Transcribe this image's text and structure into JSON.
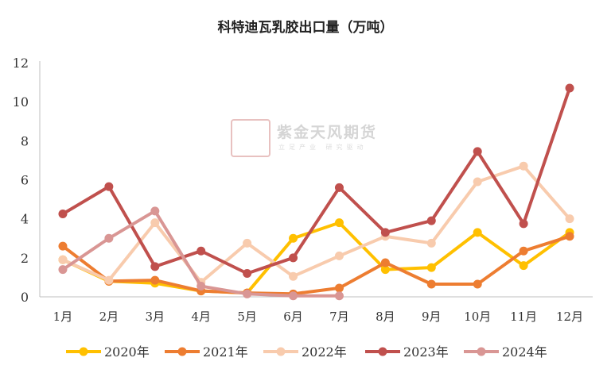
{
  "chart_data": {
    "type": "line",
    "title": "科特迪瓦乳胶出口量（万吨）",
    "categories": [
      "1月",
      "2月",
      "3月",
      "4月",
      "5月",
      "6月",
      "7月",
      "8月",
      "9月",
      "10月",
      "11月",
      "12月"
    ],
    "ylim": [
      0,
      12
    ],
    "yticks": [
      0,
      2,
      4,
      6,
      8,
      10,
      12
    ],
    "grid": false,
    "legend_position": "bottom",
    "series": [
      {
        "name": "2020年",
        "color": "#FFC000",
        "values": [
          1.9,
          0.8,
          0.7,
          0.3,
          0.2,
          3.0,
          3.8,
          1.4,
          1.5,
          3.3,
          1.6,
          3.3
        ]
      },
      {
        "name": "2021年",
        "color": "#ED7D31",
        "values": [
          2.6,
          0.8,
          0.85,
          0.3,
          0.2,
          0.15,
          0.45,
          1.75,
          0.65,
          0.65,
          2.35,
          3.1
        ]
      },
      {
        "name": "2022年",
        "color": "#F8CBAD",
        "values": [
          1.9,
          0.85,
          3.8,
          0.75,
          2.75,
          1.05,
          2.1,
          3.1,
          2.75,
          5.9,
          6.7,
          4.0
        ]
      },
      {
        "name": "2023年",
        "color": "#C0504D",
        "values": [
          4.25,
          5.65,
          1.55,
          2.35,
          1.2,
          2.0,
          5.6,
          3.3,
          3.9,
          7.45,
          3.75,
          10.7
        ]
      },
      {
        "name": "2024年",
        "color": "#D99694",
        "values": [
          1.4,
          3.0,
          4.4,
          0.55,
          0.15,
          0.05,
          0.05,
          null,
          null,
          null,
          null,
          null
        ]
      }
    ]
  },
  "watermark": {
    "brand": "紫金天风期货",
    "slogan": "立足产业 研究驱动",
    "seal_text": "紫天金风"
  }
}
